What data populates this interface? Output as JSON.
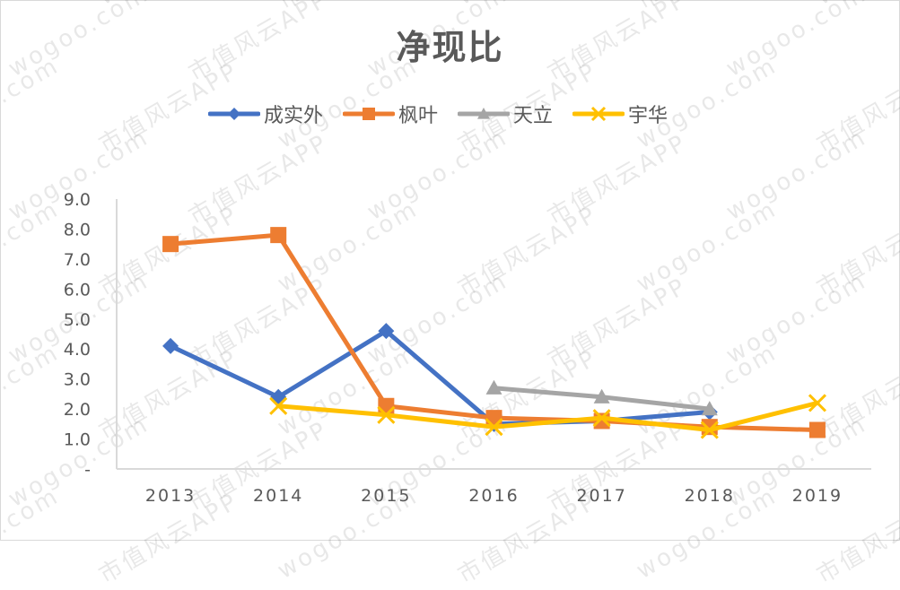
{
  "chart_data": {
    "type": "line",
    "title": "净现比",
    "xlabel": "",
    "ylabel": "",
    "categories": [
      "2013",
      "2014",
      "2015",
      "2016",
      "2017",
      "2018",
      "2019"
    ],
    "ylim": [
      0,
      9
    ],
    "yticks": [
      "-",
      "1.0",
      "2.0",
      "3.0",
      "4.0",
      "5.0",
      "6.0",
      "7.0",
      "8.0",
      "9.0"
    ],
    "grid": false,
    "legend_position": "top",
    "series": [
      {
        "name": "成实外",
        "color": "#4472C4",
        "marker": "diamond",
        "values": [
          4.1,
          2.4,
          4.6,
          1.5,
          1.6,
          1.9,
          null
        ]
      },
      {
        "name": "枫叶",
        "color": "#ED7D31",
        "marker": "square",
        "values": [
          7.5,
          7.8,
          2.1,
          1.7,
          1.6,
          1.4,
          1.3
        ]
      },
      {
        "name": "天立",
        "color": "#A5A5A5",
        "marker": "triangle",
        "values": [
          null,
          null,
          null,
          2.7,
          2.4,
          2.0,
          null
        ]
      },
      {
        "name": "宇华",
        "color": "#FFC000",
        "marker": "x",
        "values": [
          null,
          2.1,
          1.8,
          1.4,
          1.7,
          1.3,
          2.2
        ]
      }
    ]
  },
  "watermark": {
    "texts": [
      "wogoo.com",
      "市值风云APP"
    ]
  }
}
